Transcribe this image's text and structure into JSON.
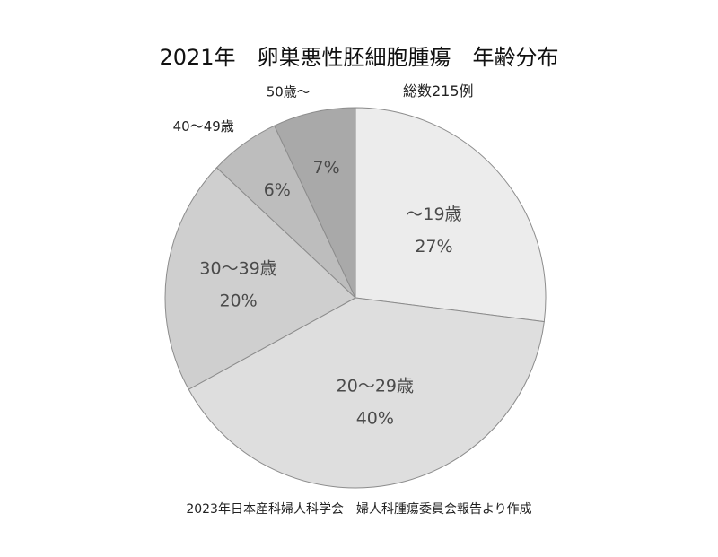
{
  "chart_data": {
    "type": "pie",
    "title": "2021年　卵巣悪性胚細胞腫瘍　年齢分布",
    "total_label": "総数215例",
    "source_note": "2023年日本産科婦人科学会　婦人科腫瘍委員会報告より作成",
    "slices": [
      {
        "label": "～19歳",
        "percent_label": "27%",
        "value": 27,
        "color": "#ececec"
      },
      {
        "label": "20～29歳",
        "percent_label": "40%",
        "value": 40,
        "color": "#dedede"
      },
      {
        "label": "30～39歳",
        "percent_label": "20%",
        "value": 20,
        "color": "#cfcfcf"
      },
      {
        "label": "40～49歳",
        "percent_label": "6%",
        "value": 6,
        "color": "#bdbdbd"
      },
      {
        "label": "50歳～",
        "percent_label": "7%",
        "value": 7,
        "color": "#a9a9a9"
      }
    ]
  }
}
